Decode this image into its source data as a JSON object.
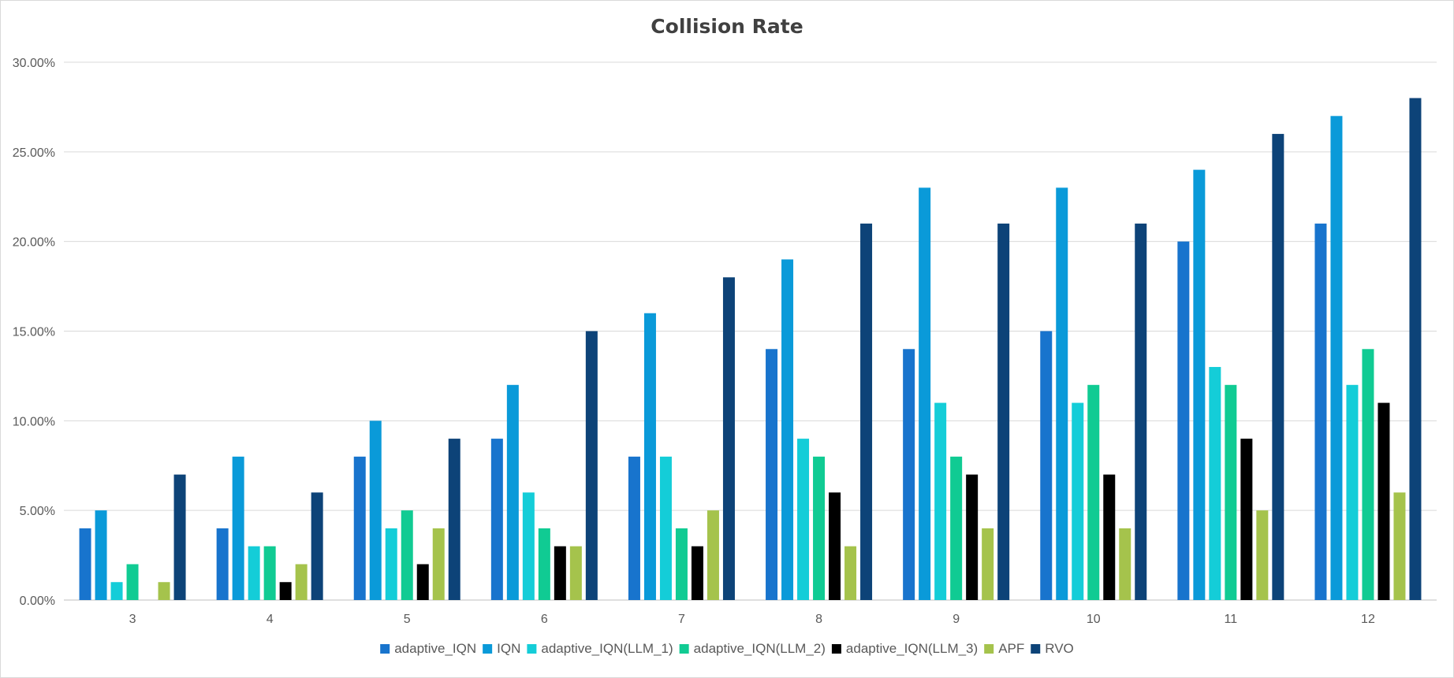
{
  "chart_data": {
    "type": "bar",
    "title": "Collision Rate",
    "xlabel": "",
    "ylabel": "",
    "categories": [
      "3",
      "4",
      "5",
      "6",
      "7",
      "8",
      "9",
      "10",
      "11",
      "12"
    ],
    "ylim": [
      0,
      0.3
    ],
    "yticks": [
      "0.00%",
      "5.00%",
      "10.00%",
      "15.00%",
      "20.00%",
      "25.00%",
      "30.00%"
    ],
    "grid": true,
    "legend_position": "bottom",
    "series": [
      {
        "name": "adaptive_IQN",
        "color": "#1874cd",
        "values": [
          0.04,
          0.04,
          0.08,
          0.09,
          0.08,
          0.14,
          0.14,
          0.15,
          0.2,
          0.21
        ]
      },
      {
        "name": "IQN",
        "color": "#0a9ad9",
        "values": [
          0.05,
          0.08,
          0.1,
          0.12,
          0.16,
          0.19,
          0.23,
          0.23,
          0.24,
          0.27
        ]
      },
      {
        "name": "adaptive_IQN(LLM_1)",
        "color": "#14cdd8",
        "values": [
          0.01,
          0.03,
          0.04,
          0.06,
          0.08,
          0.09,
          0.11,
          0.11,
          0.13,
          0.12
        ]
      },
      {
        "name": "adaptive_IQN(LLM_2)",
        "color": "#10cb93",
        "values": [
          0.02,
          0.03,
          0.05,
          0.04,
          0.04,
          0.08,
          0.08,
          0.12,
          0.12,
          0.14
        ]
      },
      {
        "name": "adaptive_IQN(LLM_3)",
        "color": "#000000",
        "values": [
          0.0,
          0.01,
          0.02,
          0.03,
          0.03,
          0.06,
          0.07,
          0.07,
          0.09,
          0.11
        ]
      },
      {
        "name": "APF",
        "color": "#a5c34c",
        "values": [
          0.01,
          0.02,
          0.04,
          0.03,
          0.05,
          0.03,
          0.04,
          0.04,
          0.05,
          0.06
        ]
      },
      {
        "name": "RVO",
        "color": "#0d4378",
        "values": [
          0.07,
          0.06,
          0.09,
          0.15,
          0.18,
          0.21,
          0.21,
          0.21,
          0.26,
          0.28
        ]
      }
    ]
  }
}
